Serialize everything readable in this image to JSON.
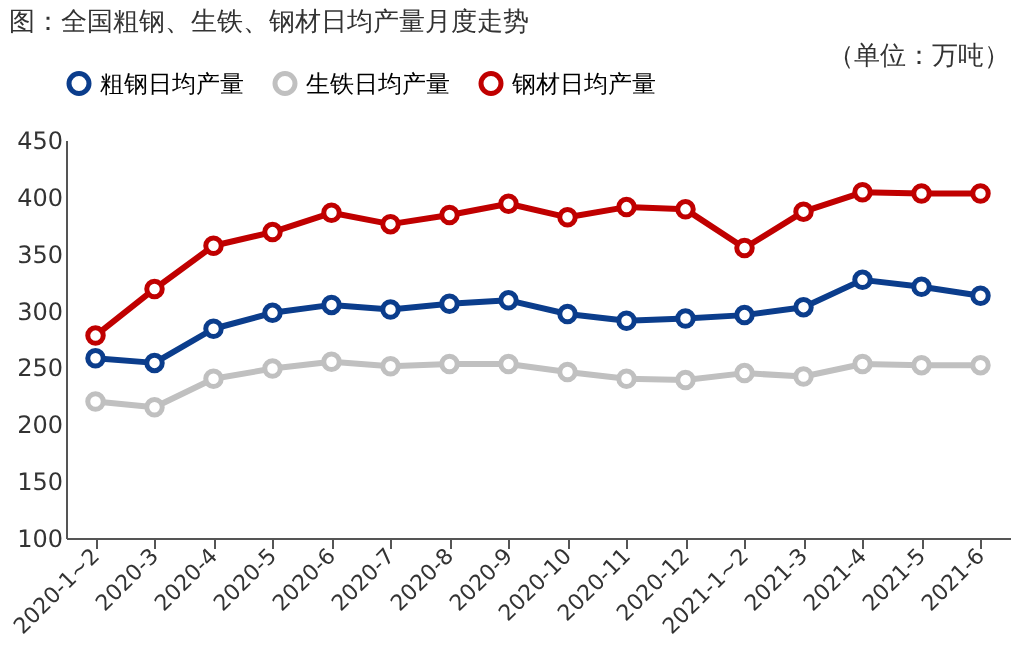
{
  "chart_data": {
    "type": "line",
    "title": "图：全国粗钢、生铁、钢材日均产量月度走势",
    "annotations": [
      "（单位：万吨）"
    ],
    "categories": [
      "2020-1~2",
      "2020-3",
      "2020-4",
      "2020-5",
      "2020-6",
      "2020-7",
      "2020-8",
      "2020-9",
      "2020-10",
      "2020-11",
      "2020-12",
      "2021-1~2",
      "2021-3",
      "2021-4",
      "2021-5",
      "2021-6"
    ],
    "series": [
      {
        "name": "粗钢日均产量",
        "color": "#0b3d8c",
        "values": [
          258,
          254,
          284,
          298,
          305,
          301,
          306,
          309,
          297,
          291,
          293,
          296,
          303,
          327,
          321,
          313
        ]
      },
      {
        "name": "生铁日均产量",
        "color": "#c0c0c0",
        "values": [
          220,
          215,
          240,
          249,
          255,
          251,
          253,
          253,
          246,
          240,
          239,
          245,
          242,
          253,
          252,
          252
        ]
      },
      {
        "name": "钢材日均产量",
        "color": "#c00000",
        "values": [
          278,
          319,
          357,
          369,
          386,
          376,
          384,
          394,
          382,
          391,
          389,
          355,
          387,
          404,
          403,
          403
        ]
      }
    ],
    "ylim": [
      100,
      450
    ],
    "yticks": [
      100,
      150,
      200,
      250,
      300,
      350,
      400,
      450
    ],
    "grid": false,
    "legend": "top",
    "marker": "circle",
    "line_style": "solid"
  }
}
